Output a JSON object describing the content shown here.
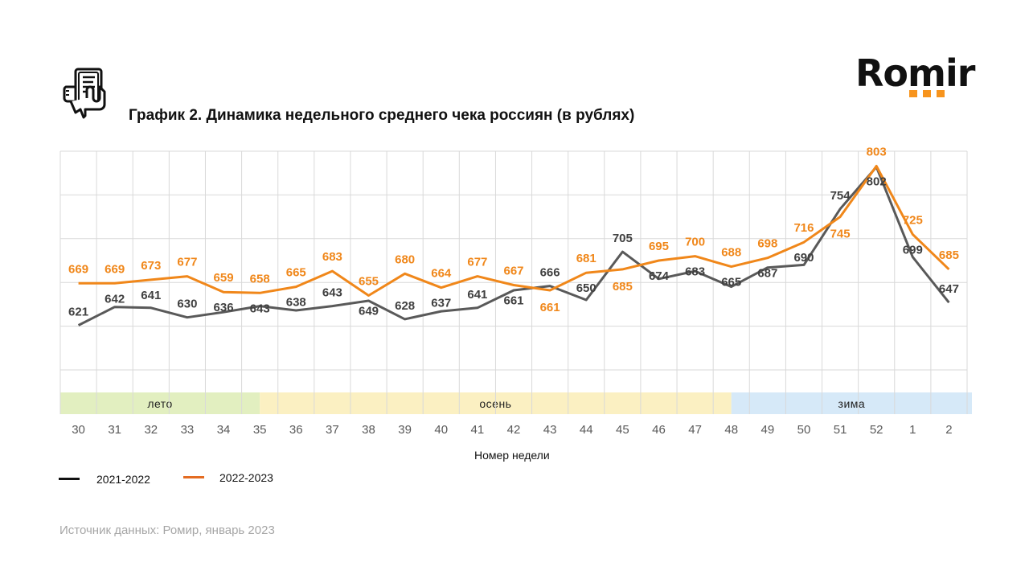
{
  "header": {
    "title": "График 2. Динамика недельного среднего чека россиян (в рублях)",
    "icon": "receipt-hand-icon",
    "logo_text": "Romir"
  },
  "colors": {
    "series_2021_2022": "#595959",
    "series_2022_2023": "#f0871a",
    "legend_2022_2023": "#e46c22",
    "grid": "#d9d9d9",
    "season_summer": "#e2efc0",
    "season_autumn": "#fbf0c2",
    "season_winter": "#d6e9f8",
    "logo_dots": "#f7941d",
    "source_text": "#a6a6a6"
  },
  "chart_data": {
    "type": "line",
    "title": "График 2. Динамика недельного среднего чека россиян (в рублях)",
    "xlabel": "Номер недели",
    "ylabel": "",
    "categories": [
      "30",
      "31",
      "32",
      "33",
      "34",
      "35",
      "36",
      "37",
      "38",
      "39",
      "40",
      "41",
      "42",
      "43",
      "44",
      "45",
      "46",
      "47",
      "48",
      "49",
      "50",
      "51",
      "52",
      "1",
      "2"
    ],
    "series": [
      {
        "name": "2021-2022",
        "color": "#595959",
        "values": [
          621,
          642,
          641,
          630,
          636,
          643,
          638,
          643,
          649,
          628,
          637,
          641,
          661,
          666,
          650,
          705,
          674,
          683,
          665,
          687,
          690,
          754,
          802,
          699,
          647
        ]
      },
      {
        "name": "2022-2023",
        "color": "#f0871a",
        "values": [
          669,
          669,
          673,
          677,
          659,
          658,
          665,
          683,
          655,
          680,
          664,
          677,
          667,
          661,
          681,
          685,
          695,
          700,
          688,
          698,
          716,
          745,
          803,
          725,
          685
        ]
      }
    ],
    "ylim": [
      570,
      820
    ],
    "y_grid_step": 50,
    "y_tick_labels_visible": false,
    "grid": true,
    "data_labels": true,
    "legend": {
      "position": "bottom-left",
      "entries": [
        "2021-2022",
        "2022-2023"
      ]
    },
    "seasons": [
      {
        "label": "лето",
        "from": "30",
        "to": "35",
        "color": "#e2efc0"
      },
      {
        "label": "осень",
        "from": "35",
        "to": "48",
        "color": "#fbf0c2"
      },
      {
        "label": "зима",
        "from": "48",
        "to": "2",
        "color": "#d6e9f8"
      }
    ]
  },
  "footer": {
    "source": "Источник данных:  Ромир, январь 2023"
  }
}
